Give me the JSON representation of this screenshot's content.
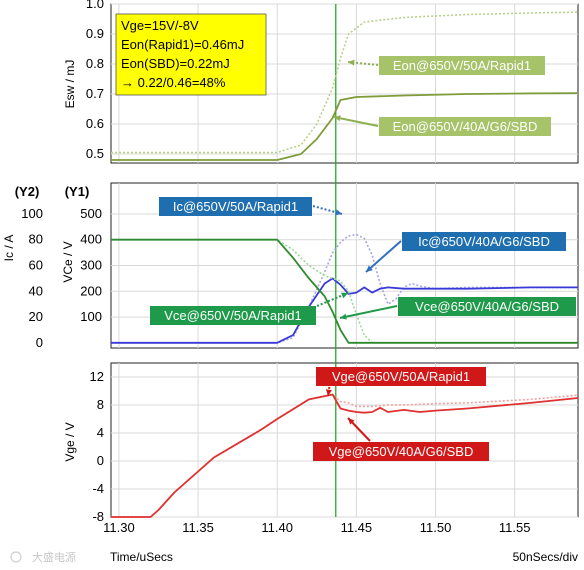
{
  "watermark": "大盛电源",
  "chart_data": [
    {
      "type": "line",
      "panel": "energy",
      "ylabel": "Esw / mJ",
      "ylim": [
        0.47,
        1.0
      ],
      "yticks": [
        "0.5",
        "0.6",
        "0.7",
        "0.8",
        "0.9",
        "1.0"
      ],
      "ytick_values": [
        0.5,
        0.6,
        0.7,
        0.8,
        0.9,
        1.0
      ],
      "info_box": {
        "lines": [
          "Vge=15V/-8V",
          "Eon(Rapid1)=0.46mJ",
          "Eon(SBD)=0.22mJ",
          "→ 0.22/0.46=48%"
        ],
        "background": "#ffff00"
      },
      "series": [
        {
          "name": "Eon@650V/50A/Rapid1",
          "style": "dotted",
          "color": "#b8d08a",
          "x": [
            11.295,
            11.4,
            11.415,
            11.425,
            11.435,
            11.44,
            11.445,
            11.455,
            11.48,
            11.52,
            11.56,
            11.59
          ],
          "y": [
            0.505,
            0.505,
            0.53,
            0.6,
            0.72,
            0.82,
            0.9,
            0.94,
            0.955,
            0.965,
            0.97,
            0.973
          ]
        },
        {
          "name": "Eon@650V/40A/G6/SBD",
          "style": "solid",
          "color": "#7f9b3a",
          "x": [
            11.295,
            11.4,
            11.415,
            11.425,
            11.435,
            11.44,
            11.45,
            11.48,
            11.52,
            11.56,
            11.59
          ],
          "y": [
            0.48,
            0.48,
            0.5,
            0.55,
            0.62,
            0.68,
            0.69,
            0.695,
            0.7,
            0.702,
            0.703
          ]
        }
      ],
      "labels": [
        {
          "text": "Eon@650V/50A/Rapid1",
          "bg": "#a7c36a"
        },
        {
          "text": "Eon@650V/40A/G6/SBD",
          "bg": "#a7c36a"
        }
      ]
    },
    {
      "type": "line",
      "panel": "current_voltage",
      "y1_header": "(Y1)",
      "y2_header": "(Y2)",
      "y1label": "VCe / V",
      "y2label": "Ic / A",
      "y1lim": [
        -20,
        620
      ],
      "y1ticks": [
        "100",
        "200",
        "300",
        "400",
        "500"
      ],
      "y1tick_values": [
        100,
        200,
        300,
        400,
        500
      ],
      "y2ticks": [
        "0",
        "20",
        "40",
        "60",
        "80",
        "100"
      ],
      "y2tick_values": [
        0,
        20,
        40,
        60,
        80,
        100
      ],
      "series": [
        {
          "name": "Ic@650V/50A/Rapid1",
          "axis": "Y2",
          "style": "dotted",
          "color": "#a5a5e6",
          "x": [
            11.295,
            11.4,
            11.41,
            11.42,
            11.43,
            11.435,
            11.44,
            11.445,
            11.45,
            11.455,
            11.46,
            11.465,
            11.47,
            11.475,
            11.48,
            11.485,
            11.49,
            11.5,
            11.52,
            11.56,
            11.59
          ],
          "y": [
            0,
            0,
            4,
            28,
            55,
            70,
            78,
            83,
            84,
            81,
            68,
            46,
            30,
            34,
            43,
            46,
            44,
            42,
            43,
            43,
            43
          ]
        },
        {
          "name": "Ic@650V/40A/G6/SBD",
          "axis": "Y2",
          "style": "solid",
          "color": "#3a3ad8",
          "x": [
            11.295,
            11.4,
            11.41,
            11.42,
            11.43,
            11.435,
            11.44,
            11.445,
            11.45,
            11.455,
            11.46,
            11.465,
            11.47,
            11.48,
            11.49,
            11.5,
            11.52,
            11.56,
            11.59
          ],
          "y": [
            0,
            0,
            6,
            28,
            46,
            50,
            45,
            38,
            39,
            43,
            39,
            42,
            43,
            42,
            42,
            42,
            42,
            43,
            43
          ]
        },
        {
          "name": "Vce@650V/50A/Rapid1",
          "axis": "Y1",
          "style": "dotted",
          "color": "#9ed69e",
          "x": [
            11.295,
            11.4,
            11.41,
            11.42,
            11.43,
            11.435,
            11.44,
            11.445,
            11.45,
            11.455,
            11.46,
            11.48,
            11.52,
            11.56,
            11.59
          ],
          "y": [
            400,
            400,
            360,
            300,
            260,
            250,
            240,
            200,
            110,
            30,
            0,
            0,
            0,
            0,
            0
          ]
        },
        {
          "name": "Vce@650V/40A/G6/SBD",
          "axis": "Y1",
          "style": "solid",
          "color": "#2f8a2f",
          "x": [
            11.295,
            11.4,
            11.41,
            11.42,
            11.43,
            11.435,
            11.44,
            11.445,
            11.45,
            11.46,
            11.48,
            11.52,
            11.56,
            11.59
          ],
          "y": [
            400,
            400,
            330,
            250,
            180,
            120,
            50,
            0,
            0,
            0,
            0,
            0,
            0,
            0
          ]
        }
      ],
      "labels": [
        {
          "text": "Ic@650V/50A/Rapid1",
          "bg": "#1f6fb0"
        },
        {
          "text": "Ic@650V/40A/G6/SBD",
          "bg": "#1f6fb0"
        },
        {
          "text": "Vce@650V/50A/Rapid1",
          "bg": "#1f9a4a"
        },
        {
          "text": "Vce@650V/40A/G6/SBD",
          "bg": "#1f9a4a"
        }
      ]
    },
    {
      "type": "line",
      "panel": "gate",
      "ylabel": "Vge / V",
      "ylim": [
        -8,
        14
      ],
      "yticks": [
        "-8",
        "-4",
        "0",
        "4",
        "8",
        "12"
      ],
      "ytick_values": [
        -8,
        -4,
        0,
        4,
        8,
        12
      ],
      "series": [
        {
          "name": "Vge@650V/50A/Rapid1",
          "style": "dotted",
          "color": "#f2a0a0",
          "x": [
            11.295,
            11.32,
            11.325,
            11.335,
            11.36,
            11.39,
            11.4,
            11.42,
            11.435,
            11.44,
            11.445,
            11.45,
            11.46,
            11.47,
            11.48,
            11.5,
            11.52,
            11.56,
            11.59
          ],
          "y": [
            -8,
            -8,
            -7,
            -4.5,
            0.5,
            4.5,
            6,
            8.8,
            9.5,
            8.5,
            8.3,
            7.8,
            7.8,
            8,
            8,
            8.2,
            8.3,
            8.8,
            9.4
          ]
        },
        {
          "name": "Vge@650V/40A/G6/SBD",
          "style": "solid",
          "color": "#e03030",
          "x": [
            11.295,
            11.32,
            11.325,
            11.335,
            11.36,
            11.39,
            11.4,
            11.42,
            11.435,
            11.44,
            11.445,
            11.45,
            11.455,
            11.46,
            11.465,
            11.47,
            11.48,
            11.49,
            11.5,
            11.52,
            11.56,
            11.59
          ],
          "y": [
            -8,
            -8,
            -7,
            -4.5,
            0.5,
            4.5,
            6,
            8.8,
            9.5,
            7.5,
            7.2,
            7.0,
            6.9,
            7.0,
            7.6,
            7.0,
            7.3,
            7.0,
            7.2,
            7.5,
            8.3,
            9.0
          ]
        }
      ],
      "labels": [
        {
          "text": "Vge@650V/50A/Rapid1",
          "bg": "#d01818"
        },
        {
          "text": "Vge@650V/40A/G6/SBD",
          "bg": "#d01818"
        }
      ]
    }
  ],
  "xaxis": {
    "label": "Time/uSecs",
    "scale_note": "50nSecs/div",
    "ticks": [
      "11.30",
      "11.35",
      "11.40",
      "11.45",
      "11.50",
      "11.55"
    ],
    "tick_values": [
      11.3,
      11.35,
      11.4,
      11.45,
      11.5,
      11.55
    ],
    "xlim": [
      11.295,
      11.59
    ]
  }
}
